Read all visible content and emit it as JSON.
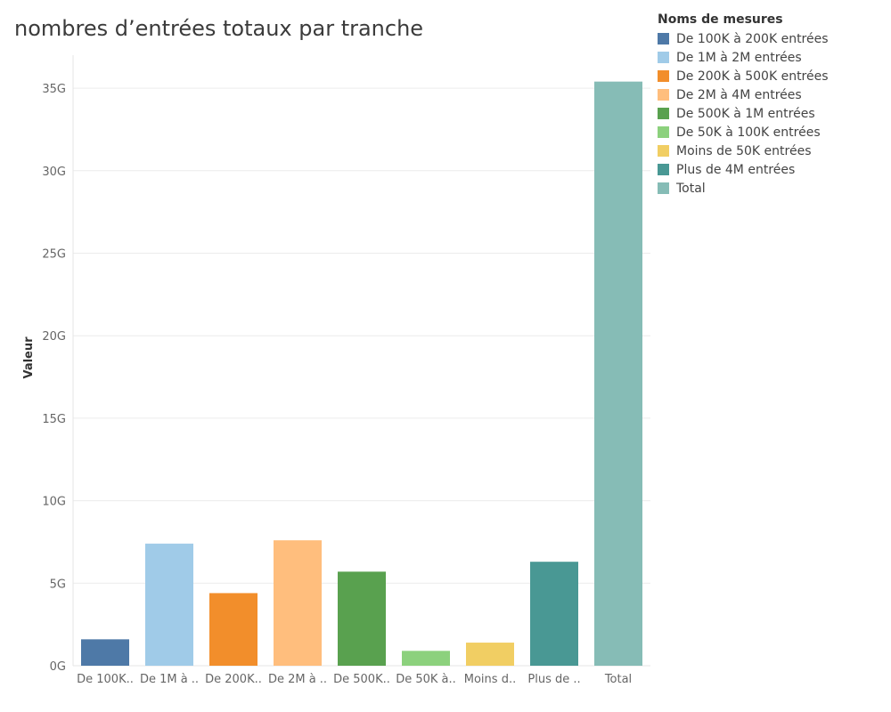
{
  "chart_data": {
    "type": "bar",
    "title": "nombres d’entrées totaux par tranche",
    "xlabel": "",
    "ylabel": "Valeur",
    "categories": [
      "De 100K..",
      "De 1M à ..",
      "De 200K..",
      "De 2M à ..",
      "De 500K..",
      "De 50K à..",
      "Moins d..",
      "Plus de ..",
      "Total"
    ],
    "values": [
      1.6,
      7.4,
      4.4,
      7.6,
      5.7,
      0.9,
      1.4,
      6.3,
      35.4
    ],
    "value_unit": "G",
    "colors": [
      "#4e79a7",
      "#a0cbe8",
      "#f28e2b",
      "#ffbe7d",
      "#59a14f",
      "#8cd17d",
      "#f1ce63",
      "#499894",
      "#86bcb6"
    ],
    "ylim": [
      0,
      37
    ],
    "yticks": [
      0,
      5,
      10,
      15,
      20,
      25,
      30,
      35
    ],
    "ytick_labels": [
      "0G",
      "5G",
      "10G",
      "15G",
      "20G",
      "25G",
      "30G",
      "35G"
    ],
    "grid": true,
    "legend": {
      "title": "Noms de mesures",
      "placement": "right",
      "entries": [
        "De 100K à 200K entrées",
        "De 1M à 2M entrées",
        "De 200K à 500K entrées",
        "De 2M à 4M entrées",
        "De 500K à 1M entrées",
        "De 50K à 100K entrées",
        "Moins de 50K entrées",
        "Plus de 4M entrées",
        "Total"
      ]
    }
  }
}
